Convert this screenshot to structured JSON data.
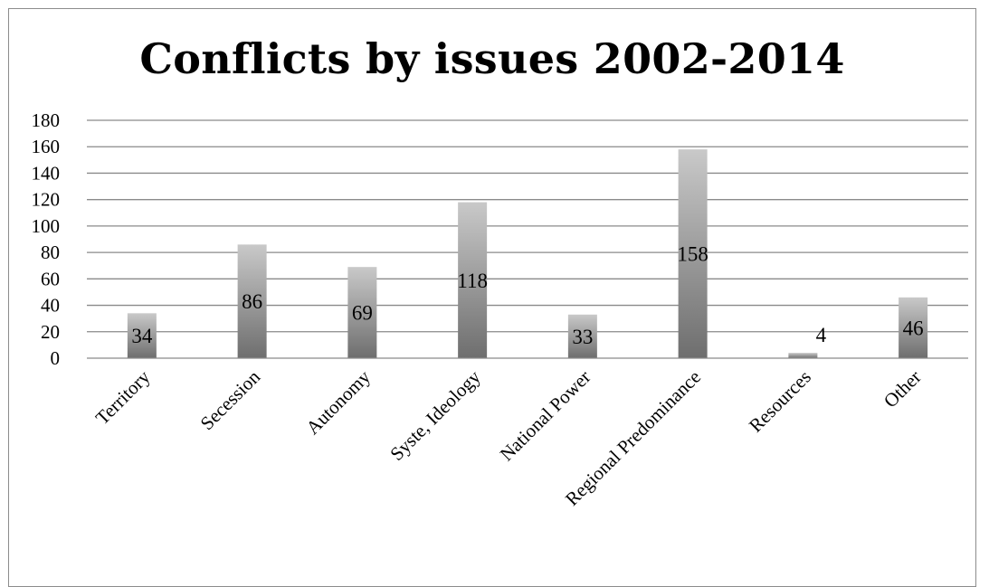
{
  "chart_data": {
    "type": "bar",
    "title": "Conflicts by issues 2002-2014",
    "xlabel": "",
    "ylabel": "",
    "categories": [
      "Territory",
      "Secession",
      "Autonomy",
      "Syste, Ideology",
      "National Power",
      "Regional Predominance",
      "Resources",
      "Other"
    ],
    "values": [
      34,
      86,
      69,
      118,
      33,
      158,
      4,
      46
    ],
    "ylim": [
      0,
      180
    ],
    "yticks": [
      0,
      20,
      40,
      60,
      80,
      100,
      120,
      140,
      160,
      180
    ],
    "grid": true,
    "legend": "none",
    "colors": {
      "bar_top": "#c9c9c9",
      "bar_bottom": "#6e6e6e",
      "gridline": "#8a8a8a",
      "axis": "#8a8a8a"
    }
  }
}
